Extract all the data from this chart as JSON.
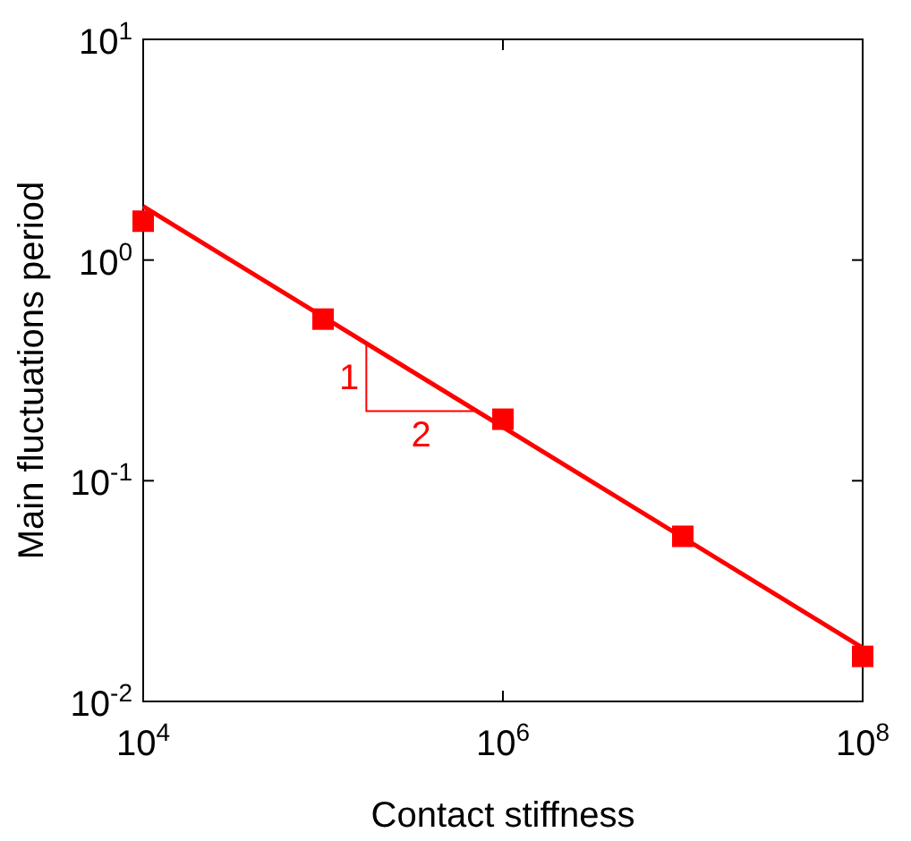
{
  "chart_data": {
    "type": "scatter",
    "xlabel": "Contact stiffness",
    "ylabel": "Main fluctuations period",
    "log": "xy",
    "marker": "square",
    "grid": false,
    "xlim": [
      10000,
      100000000
    ],
    "xticks": [
      {
        "value": 10000,
        "label": "10$^{4}$"
      },
      {
        "value": 1000000,
        "label": "10$^{6}$"
      },
      {
        "value": 100000000,
        "label": "10$^{8}$"
      }
    ],
    "ylim": [
      0.01,
      10
    ],
    "yticks": [
      {
        "value": 0.01,
        "label": "10$^{-2}$"
      },
      {
        "value": 0.1,
        "label": "10$^{-1}$"
      },
      {
        "value": 1,
        "label": "10$^{0}$"
      },
      {
        "value": 10,
        "label": "10$^{1}$"
      }
    ],
    "series": [
      {
        "color": "#ff0000",
        "x": [
          10000,
          100000,
          1000000,
          10000000,
          100000000
        ],
        "values": [
          1.5,
          0.54,
          0.19,
          0.056,
          0.016
        ]
      },
      {
        "type": "line",
        "color": "#ff0000",
        "line_style": "solid",
        "marker": "none",
        "x": [
          10000,
          100000000
        ],
        "values": [
          1.75,
          0.0175
        ]
      }
    ],
    "annotations": [
      {
        "text": "1",
        "x": 174000,
        "y": 0.42
      },
      {
        "text": "2",
        "x": 710000,
        "y": 0.207
      }
    ]
  }
}
